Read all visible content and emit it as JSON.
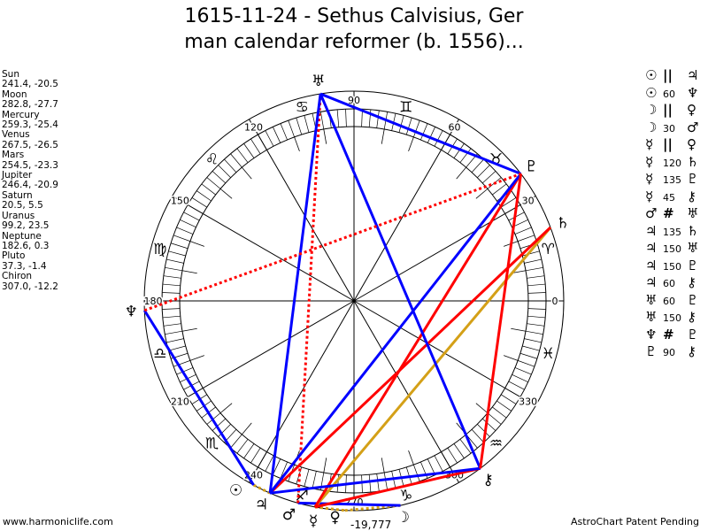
{
  "title": {
    "line1": "1615-11-24 - Sethus Calvisius, Ger",
    "line2": "man calendar reformer (b. 1556)..."
  },
  "planets": [
    {
      "name": "Sun",
      "coords": "241.4, -20.5",
      "lon": 241.4,
      "glyph": "☉"
    },
    {
      "name": "Moon",
      "coords": "282.8, -27.7",
      "lon": 282.8,
      "glyph": "☽"
    },
    {
      "name": "Mercury",
      "coords": "259.3, -25.4",
      "lon": 259.3,
      "glyph": "☿"
    },
    {
      "name": "Venus",
      "coords": "267.5, -26.5",
      "lon": 267.5,
      "glyph": "♀"
    },
    {
      "name": "Mars",
      "coords": "254.5, -23.3",
      "lon": 254.5,
      "glyph": "♂"
    },
    {
      "name": "Jupiter",
      "coords": "246.4, -20.9",
      "lon": 246.4,
      "glyph": "♃"
    },
    {
      "name": "Saturn",
      "coords": "20.5, 5.5",
      "lon": 20.5,
      "glyph": "♄"
    },
    {
      "name": "Uranus",
      "coords": "99.2, 23.5",
      "lon": 99.2,
      "glyph": "♅"
    },
    {
      "name": "Neptune",
      "coords": "182.6, 0.3",
      "lon": 182.6,
      "glyph": "♆"
    },
    {
      "name": "Pluto",
      "coords": "37.3, -1.4",
      "lon": 37.3,
      "glyph": "♇"
    },
    {
      "name": "Chiron",
      "coords": "307.0, -12.2",
      "lon": 307.0,
      "glyph": "⚷"
    }
  ],
  "aspects": [
    {
      "p1": "☉",
      "aspect": "||",
      "p2": "♃",
      "from": "Sun",
      "to": "Jupiter",
      "color": "#d4a017",
      "dotted": true
    },
    {
      "p1": "☉",
      "aspect": "60",
      "p2": "♆",
      "from": "Sun",
      "to": "Neptune",
      "color": "#0000ff",
      "dotted": false
    },
    {
      "p1": "☽",
      "aspect": "||",
      "p2": "♀",
      "from": "Moon",
      "to": "Venus",
      "color": "#d4a017",
      "dotted": true
    },
    {
      "p1": "☽",
      "aspect": "30",
      "p2": "♂",
      "from": "Moon",
      "to": "Mars",
      "color": "#0000ff",
      "dotted": false
    },
    {
      "p1": "☿",
      "aspect": "||",
      "p2": "♀",
      "from": "Mercury",
      "to": "Venus",
      "color": "#d4a017",
      "dotted": true
    },
    {
      "p1": "☿",
      "aspect": "120",
      "p2": "♄",
      "from": "Mercury",
      "to": "Saturn",
      "color": "#d4a017",
      "dotted": false
    },
    {
      "p1": "☿",
      "aspect": "135",
      "p2": "♇",
      "from": "Mercury",
      "to": "Pluto",
      "color": "#ff0000",
      "dotted": false
    },
    {
      "p1": "☿",
      "aspect": "45",
      "p2": "⚷",
      "from": "Mercury",
      "to": "Chiron",
      "color": "#ff0000",
      "dotted": false
    },
    {
      "p1": "♂",
      "aspect": "#",
      "p2": "♅",
      "from": "Mars",
      "to": "Uranus",
      "color": "#ff0000",
      "dotted": true
    },
    {
      "p1": "♃",
      "aspect": "135",
      "p2": "♄",
      "from": "Jupiter",
      "to": "Saturn",
      "color": "#ff0000",
      "dotted": false
    },
    {
      "p1": "♃",
      "aspect": "150",
      "p2": "♅",
      "from": "Jupiter",
      "to": "Uranus",
      "color": "#0000ff",
      "dotted": false
    },
    {
      "p1": "♃",
      "aspect": "150",
      "p2": "♇",
      "from": "Jupiter",
      "to": "Pluto",
      "color": "#0000ff",
      "dotted": false
    },
    {
      "p1": "♃",
      "aspect": "60",
      "p2": "⚷",
      "from": "Jupiter",
      "to": "Chiron",
      "color": "#0000ff",
      "dotted": false
    },
    {
      "p1": "♅",
      "aspect": "60",
      "p2": "♇",
      "from": "Uranus",
      "to": "Pluto",
      "color": "#0000ff",
      "dotted": false
    },
    {
      "p1": "♅",
      "aspect": "150",
      "p2": "⚷",
      "from": "Uranus",
      "to": "Chiron",
      "color": "#0000ff",
      "dotted": false
    },
    {
      "p1": "♆",
      "aspect": "#",
      "p2": "♇",
      "from": "Neptune",
      "to": "Pluto",
      "color": "#ff0000",
      "dotted": true
    },
    {
      "p1": "♇",
      "aspect": "90",
      "p2": "⚷",
      "from": "Pluto",
      "to": "Chiron",
      "color": "#ff0000",
      "dotted": false
    }
  ],
  "signs": [
    "♈",
    "♉",
    "♊",
    "♋",
    "♌",
    "♍",
    "♎",
    "♏",
    "♐",
    "♑",
    "♒",
    "♓"
  ],
  "degree_labels": [
    "0",
    "30",
    "60",
    "90",
    "120",
    "150",
    "180",
    "210",
    "240",
    "270",
    "300",
    "330"
  ],
  "year_readout": "-19,777",
  "footer": {
    "left": "www.harmoniclife.com",
    "right": "AstroChart Patent Pending"
  }
}
